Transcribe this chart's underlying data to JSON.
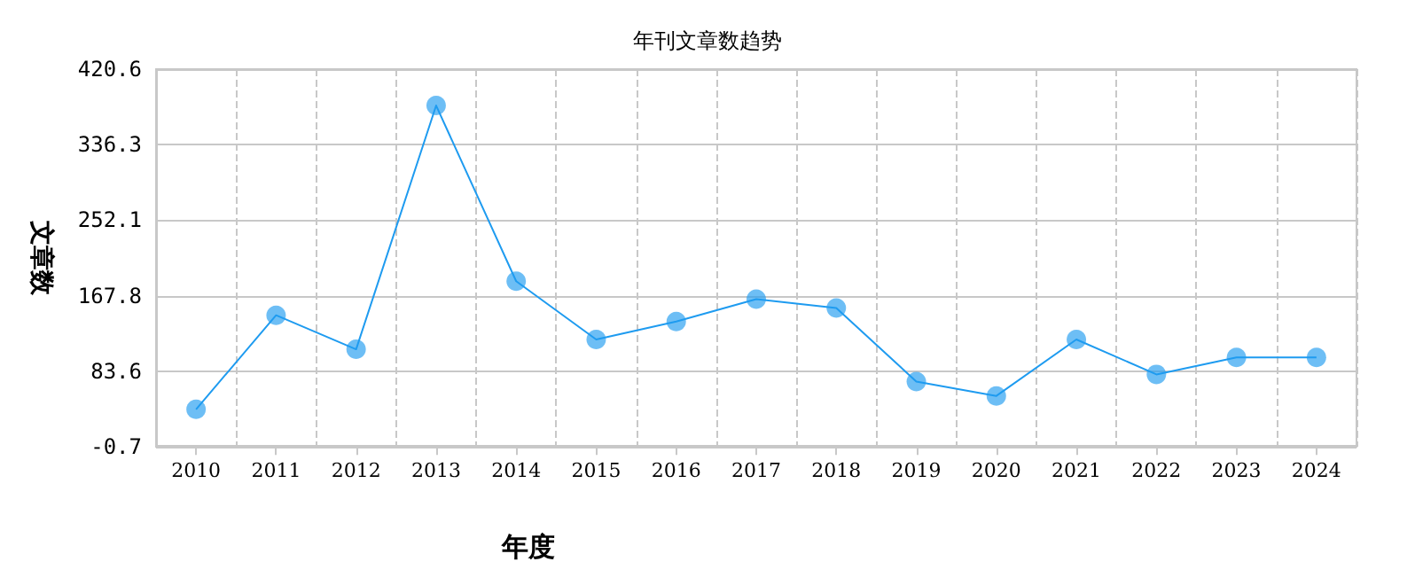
{
  "chart_data": {
    "type": "line",
    "title": "年刊文章数趋势",
    "xlabel": "年度",
    "ylabel": "文章数",
    "categories": [
      "2010",
      "2011",
      "2012",
      "2013",
      "2014",
      "2015",
      "2016",
      "2017",
      "2018",
      "2019",
      "2020",
      "2021",
      "2022",
      "2023",
      "2024"
    ],
    "series": [
      {
        "color": "#1e9bf0",
        "values": [
          41,
          146,
          108,
          380,
          184,
          119,
          139,
          164,
          154,
          72,
          56,
          119,
          80,
          99,
          99
        ]
      }
    ],
    "ylim": [
      -0.7,
      420.6
    ],
    "yticks": [
      -0.7,
      83.6,
      167.8,
      252.1,
      336.3,
      420.6
    ],
    "grid": true,
    "marker": "circle",
    "line_style": "solid"
  }
}
